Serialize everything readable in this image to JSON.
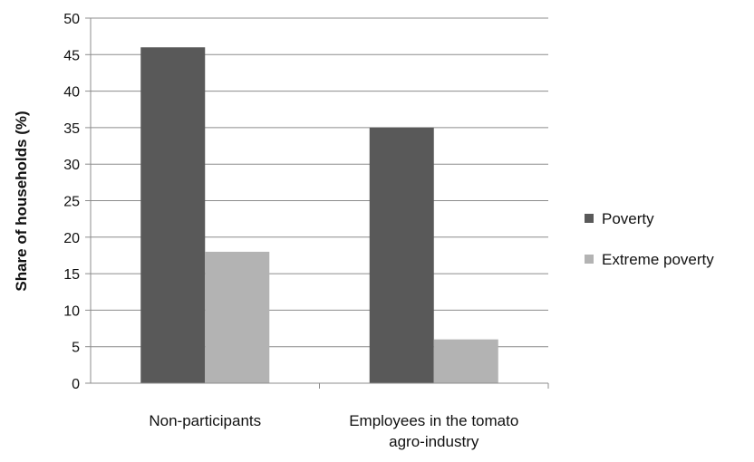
{
  "chart_data": {
    "type": "bar",
    "title": "",
    "xlabel": "",
    "ylabel": "Share of households (%)",
    "ylim": [
      0,
      50
    ],
    "yticks": [
      0,
      5,
      10,
      15,
      20,
      25,
      30,
      35,
      40,
      45,
      50
    ],
    "grid": true,
    "legend_position": "right",
    "categories": [
      "Non-participants",
      "Employees in the tomato agro-industry"
    ],
    "category_label_lines": [
      [
        "Non-participants"
      ],
      [
        "Employees in the tomato",
        "agro-industry"
      ]
    ],
    "series": [
      {
        "name": "Poverty",
        "values": [
          46,
          35
        ],
        "color": "#595959"
      },
      {
        "name": "Extreme poverty",
        "values": [
          18,
          6
        ],
        "color": "#b3b3b3"
      }
    ]
  }
}
